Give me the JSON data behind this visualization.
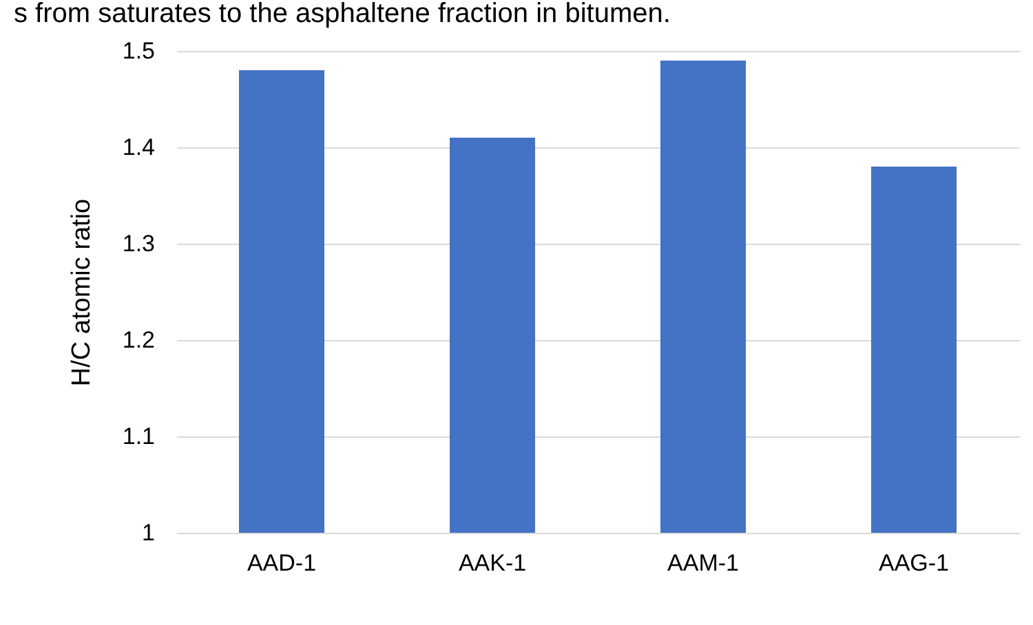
{
  "chart_data": {
    "type": "bar",
    "title": "s from saturates to the asphaltene fraction in bitumen.",
    "ylabel": "H/C atomic ratio",
    "categories": [
      "AAD-1",
      "AAK-1",
      "AAM-1",
      "AAG-1"
    ],
    "values": [
      1.48,
      1.41,
      1.49,
      1.38
    ],
    "color": "#4472c4",
    "ylim": [
      1,
      1.5
    ],
    "yticks": [
      1,
      1.1,
      1.2,
      1.3,
      1.4,
      1.5
    ],
    "grid": "y"
  }
}
